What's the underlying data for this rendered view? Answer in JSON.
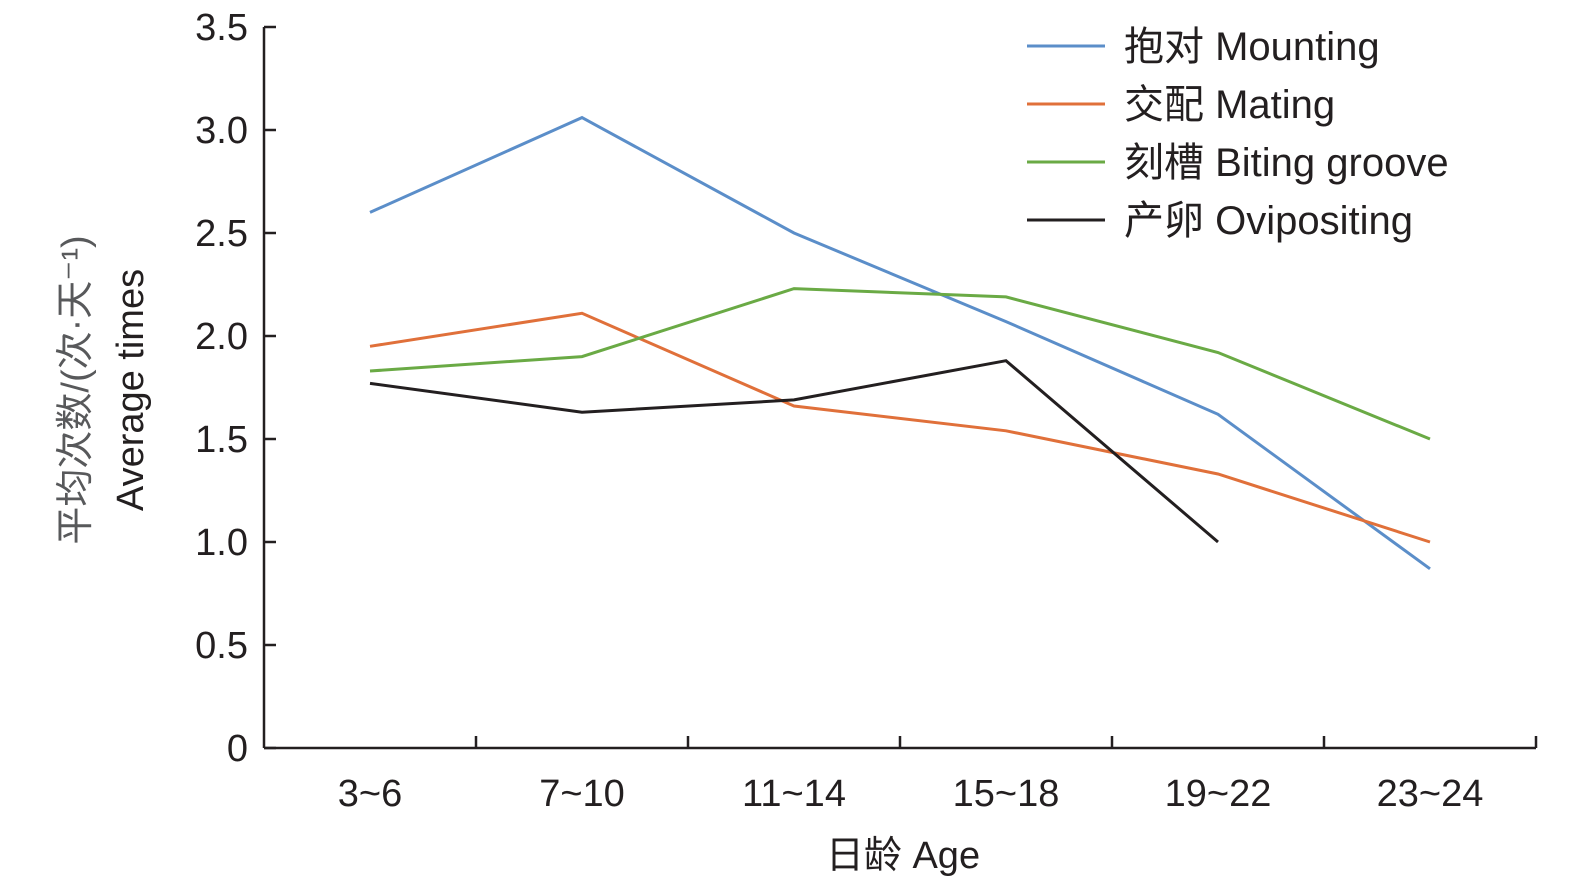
{
  "chart_data": {
    "type": "line",
    "xlabel": "日龄 Age",
    "ylabel_cn": "平均次数/(次·天⁻¹)",
    "ylabel_en": "Average times",
    "categories": [
      "3~6",
      "7~10",
      "11~14",
      "15~18",
      "19~22",
      "23~24"
    ],
    "ylim": [
      0,
      3.5
    ],
    "yticks": [
      "0",
      "0.5",
      "1.0",
      "1.5",
      "2.0",
      "2.5",
      "3.0",
      "3.5"
    ],
    "grid": false,
    "legend_position": "top-right",
    "series": [
      {
        "name": "抱对 Mounting",
        "color": "#5b8ec9",
        "values": [
          2.6,
          3.06,
          2.5,
          2.07,
          1.62,
          0.87
        ]
      },
      {
        "name": "交配 Mating",
        "color": "#e0703a",
        "values": [
          1.95,
          2.11,
          1.66,
          1.54,
          1.33,
          1.0
        ]
      },
      {
        "name": "刻槽 Biting groove",
        "color": "#6aaa45",
        "values": [
          1.83,
          1.9,
          2.23,
          2.19,
          1.92,
          1.5
        ]
      },
      {
        "name": "产卵 Ovipositing",
        "color": "#231f20",
        "values": [
          1.77,
          1.63,
          1.69,
          1.88,
          1.0,
          null
        ]
      }
    ]
  }
}
